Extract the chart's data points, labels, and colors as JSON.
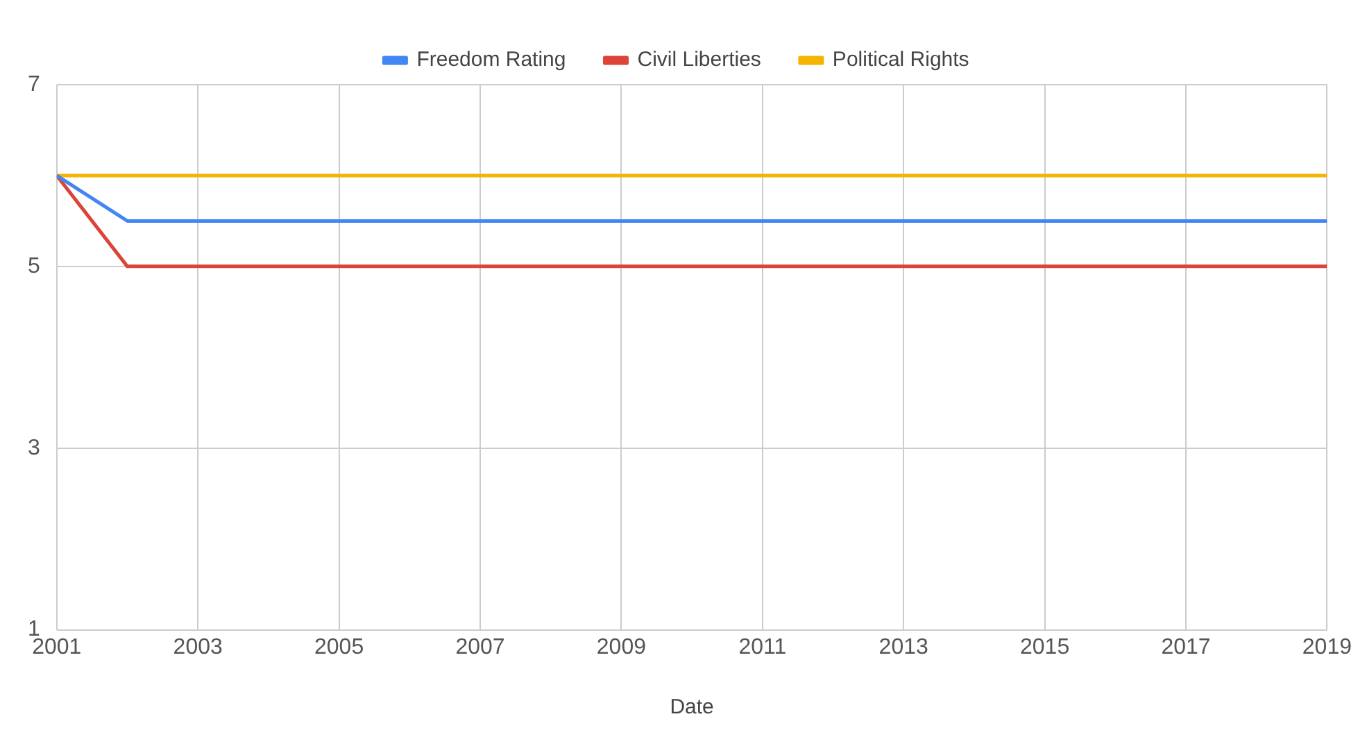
{
  "chart_data": {
    "type": "line",
    "xlabel": "Date",
    "x": [
      2001,
      2002,
      2003,
      2004,
      2005,
      2006,
      2007,
      2008,
      2009,
      2010,
      2011,
      2012,
      2013,
      2014,
      2015,
      2016,
      2017,
      2018,
      2019
    ],
    "series": [
      {
        "name": "Freedom Rating",
        "color": "#4285f4",
        "values": [
          6,
          5.5,
          5.5,
          5.5,
          5.5,
          5.5,
          5.5,
          5.5,
          5.5,
          5.5,
          5.5,
          5.5,
          5.5,
          5.5,
          5.5,
          5.5,
          5.5,
          5.5,
          5.5
        ]
      },
      {
        "name": "Civil Liberties",
        "color": "#db4437",
        "values": [
          6,
          5,
          5,
          5,
          5,
          5,
          5,
          5,
          5,
          5,
          5,
          5,
          5,
          5,
          5,
          5,
          5,
          5,
          5
        ]
      },
      {
        "name": "Political Rights",
        "color": "#f4b400",
        "values": [
          6,
          6,
          6,
          6,
          6,
          6,
          6,
          6,
          6,
          6,
          6,
          6,
          6,
          6,
          6,
          6,
          6,
          6,
          6
        ]
      }
    ],
    "xlim": [
      2001,
      2019
    ],
    "xticks": [
      2001,
      2003,
      2005,
      2007,
      2009,
      2011,
      2013,
      2015,
      2017,
      2019
    ],
    "ylim": [
      1,
      7
    ],
    "yticks": [
      1,
      3,
      5,
      7
    ],
    "grid": true,
    "legend": "top"
  }
}
